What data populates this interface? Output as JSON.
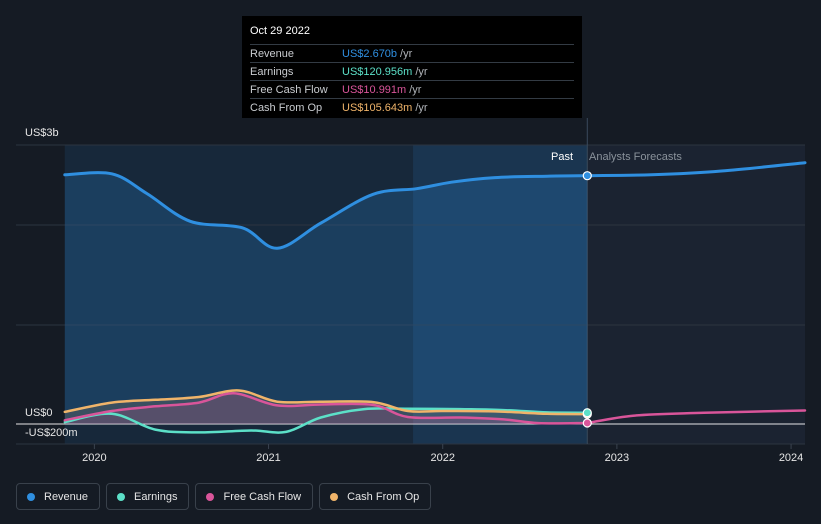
{
  "tooltip": {
    "date": "Oct 29 2022",
    "rows": [
      {
        "label": "Revenue",
        "value": "US$2.670b",
        "unit": "/yr",
        "color": "#2f8fe0"
      },
      {
        "label": "Earnings",
        "value": "US$120.956m",
        "unit": "/yr",
        "color": "#5ce0c8"
      },
      {
        "label": "Free Cash Flow",
        "value": "US$10.991m",
        "unit": "/yr",
        "color": "#d9559a"
      },
      {
        "label": "Cash From Op",
        "value": "US$105.643m",
        "unit": "/yr",
        "color": "#f0b46a"
      }
    ]
  },
  "labels": {
    "past": "Past",
    "forecast": "Analysts Forecasts"
  },
  "legend": [
    {
      "label": "Revenue",
      "color": "#2f8fe0"
    },
    {
      "label": "Earnings",
      "color": "#5ce0c8"
    },
    {
      "label": "Free Cash Flow",
      "color": "#d9559a"
    },
    {
      "label": "Cash From Op",
      "color": "#f0b46a"
    }
  ],
  "chart_data": {
    "type": "line",
    "title": "",
    "xlabel": "",
    "ylabel": "",
    "x_ticks": [
      "2020",
      "2021",
      "2022",
      "2023",
      "2024"
    ],
    "x_tick_values": [
      2020,
      2021,
      2022,
      2023,
      2024
    ],
    "y_ticks": [
      {
        "label": "US$3b",
        "value": 3000
      },
      {
        "label": "US$0",
        "value": 0
      },
      {
        "label": "-US$200m",
        "value": -200
      }
    ],
    "ylim": [
      -200,
      3000
    ],
    "xlim": [
      2019.55,
      2024.08
    ],
    "past_end": 2022.83,
    "highlight_start": 2021.83,
    "series": [
      {
        "name": "Revenue",
        "color": "#2f8fe0",
        "x": [
          2019.83,
          2020.1,
          2020.3,
          2020.55,
          2020.85,
          2021.05,
          2021.3,
          2021.6,
          2021.85,
          2022.05,
          2022.3,
          2022.6,
          2022.83
        ],
        "y": [
          2680,
          2690,
          2480,
          2180,
          2110,
          1890,
          2160,
          2470,
          2530,
          2600,
          2650,
          2665,
          2670
        ]
      },
      {
        "name": "Revenue forecast",
        "color": "#2f8fe0",
        "forecast": true,
        "x": [
          2022.83,
          2023.2,
          2023.6,
          2024.08
        ],
        "y": [
          2670,
          2680,
          2720,
          2810
        ]
      },
      {
        "name": "Earnings",
        "color": "#5ce0c8",
        "x": [
          2019.83,
          2020.1,
          2020.35,
          2020.6,
          2020.9,
          2021.1,
          2021.3,
          2021.55,
          2021.8,
          2022.1,
          2022.35,
          2022.6,
          2022.83
        ],
        "y": [
          20,
          110,
          -60,
          -90,
          -70,
          -85,
          70,
          160,
          165,
          160,
          150,
          125,
          121
        ]
      },
      {
        "name": "Free Cash Flow",
        "color": "#d9559a",
        "x": [
          2019.83,
          2020.1,
          2020.35,
          2020.6,
          2020.8,
          2021.05,
          2021.3,
          2021.6,
          2021.8,
          2022.1,
          2022.35,
          2022.55,
          2022.83
        ],
        "y": [
          40,
          140,
          190,
          230,
          330,
          200,
          210,
          205,
          75,
          70,
          50,
          10,
          11
        ]
      },
      {
        "name": "Free Cash Flow forecast",
        "color": "#d9559a",
        "forecast": true,
        "x": [
          2022.83,
          2023.1,
          2023.5,
          2024.08
        ],
        "y": [
          11,
          90,
          120,
          145
        ]
      },
      {
        "name": "Cash From Op",
        "color": "#f0b46a",
        "x": [
          2019.83,
          2020.1,
          2020.35,
          2020.6,
          2020.83,
          2021.05,
          2021.3,
          2021.6,
          2021.8,
          2022.0,
          2022.3,
          2022.6,
          2022.83
        ],
        "y": [
          130,
          230,
          260,
          290,
          360,
          240,
          240,
          235,
          140,
          140,
          135,
          110,
          106
        ]
      }
    ]
  }
}
